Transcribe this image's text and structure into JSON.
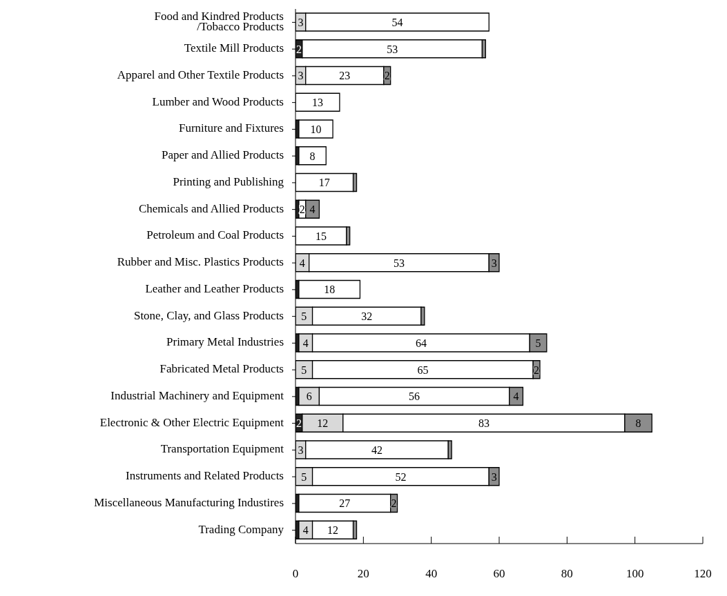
{
  "chart_data": {
    "type": "bar",
    "orientation": "horizontal",
    "stacked": true,
    "categories": [
      "Food and Kindred Products\n/Tobacco Products",
      "Textile Mill Products",
      "Apparel and Other Textile Products",
      "Lumber and Wood Products",
      "Furniture and Fixtures",
      "Paper and Allied Products",
      "Printing and Publishing",
      "Chemicals and Allied Products",
      "Petroleum and Coal Products",
      "Rubber and Misc. Plastics Products",
      "Leather and Leather Products",
      "Stone, Clay, and Glass Products",
      "Primary Metal Industries",
      "Fabricated Metal Products",
      "Industrial Machinery and Equipment",
      "Electronic & Other Electric Equipment",
      "Transportation Equipment",
      "Instruments and Related Products",
      "Miscellaneous Manufacturing Industires",
      "Trading Company"
    ],
    "series": [
      {
        "color": "#222222",
        "values": [
          null,
          2,
          null,
          null,
          1,
          1,
          null,
          1,
          null,
          null,
          1,
          null,
          1,
          null,
          1,
          2,
          null,
          null,
          1,
          1
        ],
        "value_labels": [
          null,
          "2",
          null,
          null,
          null,
          null,
          null,
          null,
          null,
          null,
          null,
          null,
          null,
          null,
          null,
          "2",
          null,
          null,
          null,
          null
        ]
      },
      {
        "color": "#d9d9d9",
        "values": [
          3,
          null,
          3,
          null,
          null,
          null,
          null,
          null,
          null,
          4,
          null,
          5,
          4,
          5,
          6,
          12,
          3,
          5,
          null,
          4
        ],
        "value_labels": [
          "3",
          null,
          "3",
          null,
          null,
          null,
          null,
          null,
          null,
          "4",
          null,
          "5",
          "4",
          "5",
          "6",
          "12",
          "3",
          "5",
          null,
          "4"
        ]
      },
      {
        "color": "#ffffff",
        "values": [
          54,
          53,
          23,
          13,
          10,
          8,
          17,
          2,
          15,
          53,
          18,
          32,
          64,
          65,
          56,
          83,
          42,
          52,
          27,
          12
        ],
        "value_labels": [
          "54",
          "53",
          "23",
          "13",
          "10",
          "8",
          "17",
          "2",
          "15",
          "53",
          "18",
          "32",
          "64",
          "65",
          "56",
          "83",
          "42",
          "52",
          "27",
          "12"
        ]
      },
      {
        "color": "#8c8c8c",
        "values": [
          null,
          1,
          2,
          null,
          null,
          null,
          1,
          4,
          1,
          3,
          null,
          1,
          5,
          2,
          4,
          8,
          1,
          3,
          2,
          1
        ],
        "value_labels": [
          null,
          null,
          "2",
          null,
          null,
          null,
          null,
          "4",
          null,
          "3",
          null,
          null,
          "5",
          "2",
          "4",
          "8",
          null,
          "3",
          "2",
          null
        ]
      }
    ],
    "xlim": [
      0,
      120
    ],
    "xticks": [
      0,
      20,
      40,
      60,
      80,
      100,
      120
    ],
    "grid": false,
    "legend": false
  }
}
